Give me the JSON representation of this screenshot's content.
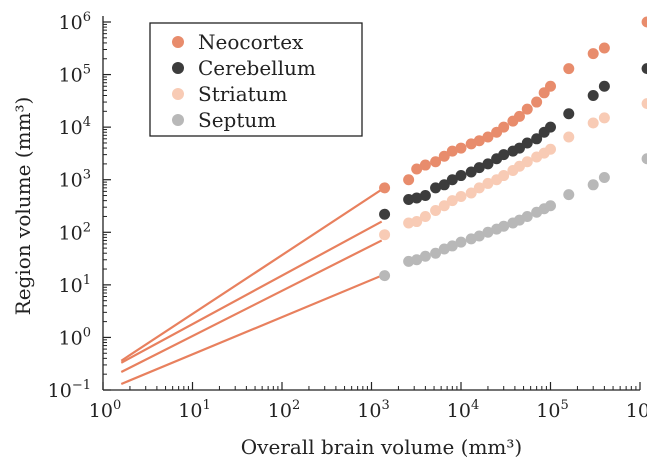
{
  "chart_data": {
    "type": "scatter",
    "xlabel": "Overall brain volume (mm³)",
    "ylabel": "Region volume (mm³)",
    "x_scale": "log",
    "y_scale": "log",
    "xlim": [
      1,
      1000000
    ],
    "ylim": [
      0.1,
      1000000
    ],
    "x_ticks": [
      {
        "base": "10",
        "exp": "0",
        "value": 1
      },
      {
        "base": "10",
        "exp": "1",
        "value": 10
      },
      {
        "base": "10",
        "exp": "2",
        "value": 100
      },
      {
        "base": "10",
        "exp": "3",
        "value": 1000
      },
      {
        "base": "10",
        "exp": "4",
        "value": 10000
      },
      {
        "base": "10",
        "exp": "5",
        "value": 100000
      },
      {
        "base": "10",
        "exp": "6",
        "value": 1000000
      }
    ],
    "y_ticks": [
      {
        "base": "10",
        "exp": "−1",
        "value": 0.1
      },
      {
        "base": "10",
        "exp": "0",
        "value": 1
      },
      {
        "base": "10",
        "exp": "1",
        "value": 10
      },
      {
        "base": "10",
        "exp": "2",
        "value": 100
      },
      {
        "base": "10",
        "exp": "3",
        "value": 1000
      },
      {
        "base": "10",
        "exp": "4",
        "value": 10000
      },
      {
        "base": "10",
        "exp": "5",
        "value": 100000
      },
      {
        "base": "10",
        "exp": "6",
        "value": 1000000
      }
    ],
    "legend_position": "top-left",
    "grid": false,
    "series": [
      {
        "name": "Neocortex",
        "color": "#e88c6c",
        "fit_line": {
          "x": [
            1.6,
            1300
          ],
          "y": [
            0.36,
            650
          ]
        },
        "points": [
          [
            1400,
            700
          ],
          [
            2600,
            1000
          ],
          [
            3200,
            1600
          ],
          [
            4000,
            1900
          ],
          [
            5200,
            2200
          ],
          [
            6500,
            2800
          ],
          [
            8000,
            3500
          ],
          [
            10000,
            4000
          ],
          [
            13000,
            4800
          ],
          [
            16000,
            5500
          ],
          [
            20000,
            6500
          ],
          [
            25000,
            8000
          ],
          [
            30000,
            10000
          ],
          [
            38000,
            13000
          ],
          [
            45000,
            16000
          ],
          [
            55000,
            22000
          ],
          [
            70000,
            30000
          ],
          [
            85000,
            45000
          ],
          [
            100000,
            60000
          ],
          [
            160000,
            130000
          ],
          [
            300000,
            250000
          ],
          [
            400000,
            320000
          ],
          [
            1200000,
            1000000
          ]
        ]
      },
      {
        "name": "Cerebellum",
        "color": "#3c3c3c",
        "fit_line": {
          "x": [
            1.6,
            1300
          ],
          "y": [
            0.33,
            160
          ]
        },
        "points": [
          [
            1400,
            220
          ],
          [
            2600,
            420
          ],
          [
            3200,
            450
          ],
          [
            4000,
            500
          ],
          [
            5200,
            700
          ],
          [
            6500,
            800
          ],
          [
            8000,
            1000
          ],
          [
            10000,
            1200
          ],
          [
            13000,
            1400
          ],
          [
            16000,
            1700
          ],
          [
            20000,
            2000
          ],
          [
            25000,
            2500
          ],
          [
            30000,
            3000
          ],
          [
            38000,
            3500
          ],
          [
            45000,
            4000
          ],
          [
            55000,
            5000
          ],
          [
            70000,
            6000
          ],
          [
            85000,
            8000
          ],
          [
            100000,
            10000
          ],
          [
            160000,
            18000
          ],
          [
            300000,
            40000
          ],
          [
            400000,
            60000
          ],
          [
            1200000,
            130000
          ]
        ]
      },
      {
        "name": "Striatum",
        "color": "#f8cbb5",
        "fit_line": {
          "x": [
            1.6,
            1300
          ],
          "y": [
            0.22,
            70
          ]
        },
        "points": [
          [
            1400,
            90
          ],
          [
            2600,
            150
          ],
          [
            3200,
            160
          ],
          [
            4000,
            200
          ],
          [
            5200,
            260
          ],
          [
            6500,
            320
          ],
          [
            8000,
            400
          ],
          [
            10000,
            480
          ],
          [
            13000,
            560
          ],
          [
            16000,
            700
          ],
          [
            20000,
            850
          ],
          [
            25000,
            1000
          ],
          [
            30000,
            1200
          ],
          [
            38000,
            1500
          ],
          [
            45000,
            1800
          ],
          [
            55000,
            2200
          ],
          [
            70000,
            2700
          ],
          [
            85000,
            3200
          ],
          [
            100000,
            3800
          ],
          [
            160000,
            6500
          ],
          [
            300000,
            12000
          ],
          [
            400000,
            15000
          ],
          [
            1200000,
            28000
          ]
        ]
      },
      {
        "name": "Septum",
        "color": "#b8b8b8",
        "fit_line": {
          "x": [
            1.6,
            1300
          ],
          "y": [
            0.13,
            15
          ]
        },
        "points": [
          [
            1400,
            15
          ],
          [
            2600,
            28
          ],
          [
            3200,
            30
          ],
          [
            4000,
            35
          ],
          [
            5200,
            40
          ],
          [
            6500,
            48
          ],
          [
            8000,
            55
          ],
          [
            10000,
            65
          ],
          [
            13000,
            75
          ],
          [
            16000,
            85
          ],
          [
            20000,
            100
          ],
          [
            25000,
            115
          ],
          [
            30000,
            130
          ],
          [
            38000,
            150
          ],
          [
            45000,
            170
          ],
          [
            55000,
            200
          ],
          [
            70000,
            240
          ],
          [
            85000,
            280
          ],
          [
            100000,
            320
          ],
          [
            160000,
            520
          ],
          [
            300000,
            800
          ],
          [
            400000,
            1100
          ],
          [
            1200000,
            2500
          ]
        ]
      }
    ]
  }
}
